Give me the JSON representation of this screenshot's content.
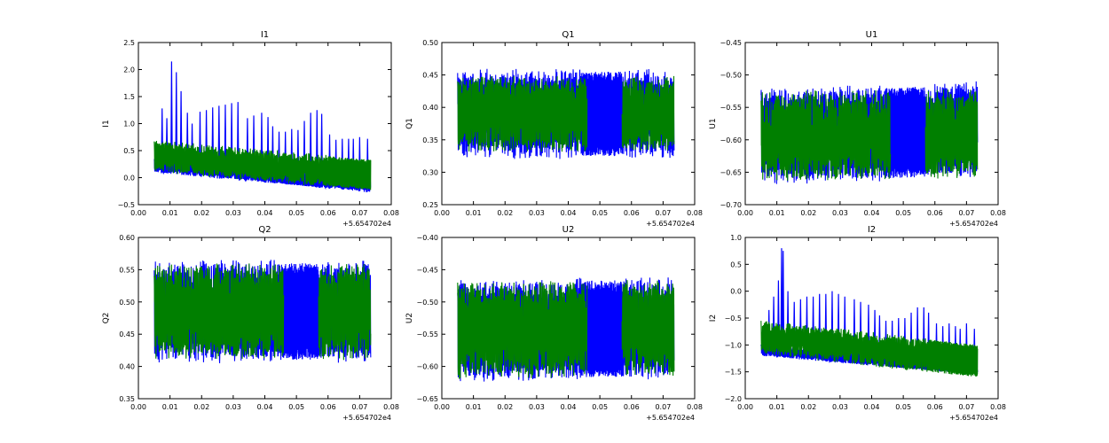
{
  "figure": {
    "colors": {
      "series_a": "#0000ff",
      "series_b": "#007f00"
    }
  },
  "chart_data": [
    {
      "type": "line",
      "title": "I1",
      "ylabel": "I1",
      "xlim": [
        0.0,
        0.08
      ],
      "ylim": [
        -0.5,
        2.5
      ],
      "xticks": [
        "0.00",
        "0.01",
        "0.02",
        "0.03",
        "0.04",
        "0.05",
        "0.06",
        "0.07",
        "0.08"
      ],
      "yticks": [
        "−0.5",
        "0.0",
        "0.5",
        "1.0",
        "1.5",
        "2.0",
        "2.5"
      ],
      "x_offset_label": "+5.654702e4",
      "series": [
        {
          "color": "#0000ff",
          "x_range": [
            0.005,
            0.0735
          ],
          "baseline": [
            0.22,
            -0.15
          ],
          "band": 0.12,
          "dense_range": [
            0.045,
            0.056
          ],
          "spikes": [
            [
              0.0075,
              1.28
            ],
            [
              0.009,
              1.1
            ],
            [
              0.0105,
              2.15
            ],
            [
              0.012,
              1.95
            ],
            [
              0.0135,
              1.6
            ],
            [
              0.0155,
              1.2
            ],
            [
              0.017,
              1.0
            ],
            [
              0.0195,
              1.22
            ],
            [
              0.0215,
              1.25
            ],
            [
              0.0235,
              1.3
            ],
            [
              0.0255,
              1.33
            ],
            [
              0.0275,
              1.35
            ],
            [
              0.0295,
              1.38
            ],
            [
              0.0315,
              1.4
            ],
            [
              0.0345,
              1.1
            ],
            [
              0.0365,
              1.15
            ],
            [
              0.039,
              1.2
            ],
            [
              0.041,
              1.12
            ],
            [
              0.0425,
              0.95
            ],
            [
              0.0445,
              0.85
            ],
            [
              0.0465,
              0.85
            ],
            [
              0.0485,
              0.9
            ],
            [
              0.0505,
              0.88
            ],
            [
              0.0525,
              1.05
            ],
            [
              0.0545,
              1.2
            ],
            [
              0.0565,
              1.25
            ],
            [
              0.058,
              1.18
            ],
            [
              0.0605,
              0.8
            ],
            [
              0.0625,
              0.7
            ],
            [
              0.0645,
              0.72
            ],
            [
              0.0665,
              0.72
            ],
            [
              0.068,
              0.72
            ],
            [
              0.07,
              0.75
            ],
            [
              0.0725,
              0.72
            ]
          ]
        },
        {
          "color": "#007f00",
          "x_range": [
            0.005,
            0.0735
          ],
          "baseline": [
            0.4,
            0.05
          ],
          "band": 0.28,
          "dense_range": [
            0.06,
            0.0735
          ]
        }
      ]
    },
    {
      "type": "line",
      "title": "Q1",
      "ylabel": "Q1",
      "xlim": [
        0.0,
        0.08
      ],
      "ylim": [
        0.25,
        0.5
      ],
      "xticks": [
        "0.00",
        "0.01",
        "0.02",
        "0.03",
        "0.04",
        "0.05",
        "0.06",
        "0.07",
        "0.08"
      ],
      "yticks": [
        "0.25",
        "0.30",
        "0.35",
        "0.40",
        "0.45",
        "0.50"
      ],
      "x_offset_label": "+5.654702e4",
      "series": [
        {
          "color": "#0000ff",
          "x_range": [
            0.005,
            0.0735
          ],
          "baseline": [
            0.39,
            0.39
          ],
          "band": 0.065,
          "dense_range": [
            0.044,
            0.057
          ]
        },
        {
          "color": "#007f00",
          "x_range": [
            0.005,
            0.0735
          ],
          "baseline": [
            0.39,
            0.39
          ],
          "band": 0.055,
          "gap_range": [
            0.046,
            0.057
          ]
        }
      ]
    },
    {
      "type": "line",
      "title": "U1",
      "ylabel": "U1",
      "xlim": [
        0.0,
        0.08
      ],
      "ylim": [
        -0.7,
        -0.45
      ],
      "xticks": [
        "0.00",
        "0.01",
        "0.02",
        "0.03",
        "0.04",
        "0.05",
        "0.06",
        "0.07",
        "0.08"
      ],
      "yticks": [
        "−0.70",
        "−0.65",
        "−0.60",
        "−0.55",
        "−0.50",
        "−0.45"
      ],
      "x_offset_label": "+5.654702e4",
      "series": [
        {
          "color": "#0000ff",
          "x_range": [
            0.005,
            0.0735
          ],
          "baseline": [
            -0.595,
            -0.585
          ],
          "band": 0.07,
          "dense_range": [
            0.044,
            0.057
          ]
        },
        {
          "color": "#007f00",
          "x_range": [
            0.005,
            0.0735
          ],
          "baseline": [
            -0.595,
            -0.59
          ],
          "band": 0.065,
          "gap_range": [
            0.046,
            0.057
          ]
        }
      ]
    },
    {
      "type": "line",
      "title": "Q2",
      "ylabel": "Q2",
      "xlim": [
        0.0,
        0.08
      ],
      "ylim": [
        0.35,
        0.6
      ],
      "xticks": [
        "0.00",
        "0.01",
        "0.02",
        "0.03",
        "0.04",
        "0.05",
        "0.06",
        "0.07",
        "0.08"
      ],
      "yticks": [
        "0.35",
        "0.40",
        "0.45",
        "0.50",
        "0.55",
        "0.60"
      ],
      "x_offset_label": "+5.654702e4",
      "series": [
        {
          "color": "#0000ff",
          "x_range": [
            0.005,
            0.0735
          ],
          "baseline": [
            0.485,
            0.485
          ],
          "band": 0.075,
          "dense_range": [
            0.044,
            0.057
          ]
        },
        {
          "color": "#007f00",
          "x_range": [
            0.005,
            0.0735
          ],
          "baseline": [
            0.485,
            0.485
          ],
          "band": 0.07,
          "gap_range": [
            0.046,
            0.057
          ]
        }
      ]
    },
    {
      "type": "line",
      "title": "U2",
      "ylabel": "U2",
      "xlim": [
        0.0,
        0.08
      ],
      "ylim": [
        -0.65,
        -0.4
      ],
      "xticks": [
        "0.00",
        "0.01",
        "0.02",
        "0.03",
        "0.04",
        "0.05",
        "0.06",
        "0.07",
        "0.08"
      ],
      "yticks": [
        "−0.65",
        "−0.60",
        "−0.55",
        "−0.50",
        "−0.45",
        "−0.40"
      ],
      "x_offset_label": "+5.654702e4",
      "series": [
        {
          "color": "#0000ff",
          "x_range": [
            0.005,
            0.0735
          ],
          "baseline": [
            -0.545,
            -0.54
          ],
          "band": 0.075,
          "dense_range": [
            0.044,
            0.057
          ]
        },
        {
          "color": "#007f00",
          "x_range": [
            0.005,
            0.0735
          ],
          "baseline": [
            -0.545,
            -0.54
          ],
          "band": 0.07,
          "gap_range": [
            0.046,
            0.057
          ]
        }
      ]
    },
    {
      "type": "line",
      "title": "I2",
      "ylabel": "I2",
      "xlim": [
        0.0,
        0.08
      ],
      "ylim": [
        -2.0,
        1.0
      ],
      "xticks": [
        "0.00",
        "0.01",
        "0.02",
        "0.03",
        "0.04",
        "0.05",
        "0.06",
        "0.07",
        "0.08"
      ],
      "yticks": [
        "−2.0",
        "−1.5",
        "−1.0",
        "−0.5",
        "0.0",
        "0.5",
        "1.0"
      ],
      "x_offset_label": "+5.654702e4",
      "series": [
        {
          "color": "#0000ff",
          "x_range": [
            0.005,
            0.0735
          ],
          "baseline": [
            -1.1,
            -1.45
          ],
          "band": 0.1,
          "dense_range": [
            0.045,
            0.056
          ],
          "spikes": [
            [
              0.0075,
              -0.35
            ],
            [
              0.009,
              -0.1
            ],
            [
              0.0105,
              0.2
            ],
            [
              0.0115,
              0.8
            ],
            [
              0.012,
              0.75
            ],
            [
              0.0135,
              0.0
            ],
            [
              0.0155,
              -0.2
            ],
            [
              0.0175,
              -0.15
            ],
            [
              0.0195,
              -0.1
            ],
            [
              0.0215,
              -0.1
            ],
            [
              0.0235,
              -0.05
            ],
            [
              0.0255,
              -0.05
            ],
            [
              0.0275,
              -0.0
            ],
            [
              0.0295,
              -0.05
            ],
            [
              0.0315,
              -0.1
            ],
            [
              0.0345,
              -0.15
            ],
            [
              0.0365,
              -0.2
            ],
            [
              0.039,
              -0.25
            ],
            [
              0.041,
              -0.35
            ],
            [
              0.0425,
              -0.45
            ],
            [
              0.0445,
              -0.55
            ],
            [
              0.0465,
              -0.55
            ],
            [
              0.0485,
              -0.5
            ],
            [
              0.0505,
              -0.5
            ],
            [
              0.0525,
              -0.4
            ],
            [
              0.0545,
              -0.3
            ],
            [
              0.0565,
              -0.3
            ],
            [
              0.058,
              -0.4
            ],
            [
              0.0605,
              -0.6
            ],
            [
              0.0625,
              -0.65
            ],
            [
              0.0645,
              -0.6
            ],
            [
              0.0665,
              -0.65
            ],
            [
              0.068,
              -0.7
            ],
            [
              0.07,
              -0.6
            ],
            [
              0.0725,
              -0.7
            ]
          ]
        },
        {
          "color": "#007f00",
          "x_range": [
            0.005,
            0.0735
          ],
          "baseline": [
            -0.85,
            -1.3
          ],
          "band": 0.3,
          "dense_range": [
            0.058,
            0.0735
          ]
        }
      ]
    }
  ]
}
